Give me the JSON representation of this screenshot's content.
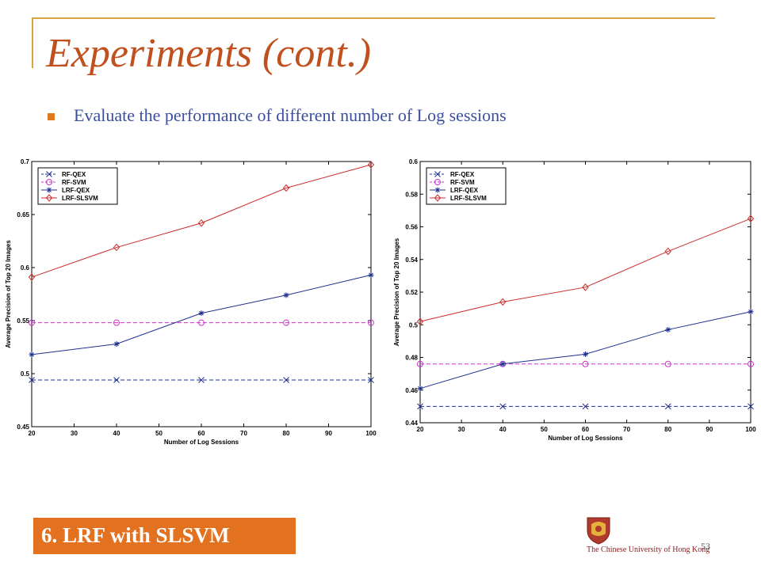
{
  "slide": {
    "title": "Experiments (cont.)",
    "bullet": "Evaluate the performance of different number of Log sessions",
    "footer_label": "6. LRF with SLSVM",
    "page_number": "53",
    "logo_text": "The Chinese University of Hong Kong"
  },
  "chart_data": [
    {
      "type": "line",
      "title": "",
      "xlabel": "Number of Log Sessions",
      "ylabel": "Average Precision of Top 20 Images",
      "x": [
        20,
        40,
        60,
        80,
        100
      ],
      "xlim": [
        20,
        100
      ],
      "ylim": [
        0.45,
        0.7
      ],
      "xticks": [
        "20",
        "30",
        "40",
        "50",
        "60",
        "70",
        "80",
        "90",
        "100"
      ],
      "yticks": [
        "0.45",
        "0.5",
        "0.55",
        "0.6",
        "0.65",
        "0.7"
      ],
      "legend_position": "top-left",
      "grid": false,
      "series": [
        {
          "name": "RF-QEX",
          "color": "#1f2f8f",
          "dash": "dashed",
          "marker": "x",
          "values": [
            0.494,
            0.494,
            0.494,
            0.494,
            0.494
          ]
        },
        {
          "name": "RF-SVM",
          "color": "#cc33cc",
          "dash": "dashed",
          "marker": "o",
          "values": [
            0.548,
            0.548,
            0.548,
            0.548,
            0.548
          ]
        },
        {
          "name": "LRF-QEX",
          "color": "#1f2f8f",
          "dash": "solid",
          "marker": "*",
          "values": [
            0.518,
            0.528,
            0.557,
            0.574,
            0.593
          ]
        },
        {
          "name": "LRF-SLSVM",
          "color": "#cc2a2a",
          "dash": "solid",
          "marker": "d",
          "values": [
            0.591,
            0.619,
            0.642,
            0.675,
            0.697
          ]
        }
      ]
    },
    {
      "type": "line",
      "title": "",
      "xlabel": "Number of Log Sessions",
      "ylabel": "Average Precision of Top 20 Images",
      "x": [
        20,
        40,
        60,
        80,
        100
      ],
      "xlim": [
        20,
        100
      ],
      "ylim": [
        0.44,
        0.6
      ],
      "xticks": [
        "20",
        "30",
        "40",
        "50",
        "60",
        "70",
        "80",
        "90",
        "100"
      ],
      "yticks": [
        "0.44",
        "0.46",
        "0.48",
        "0.5",
        "0.52",
        "0.54",
        "0.56",
        "0.58",
        "0.6"
      ],
      "legend_position": "top-left",
      "grid": false,
      "series": [
        {
          "name": "RF-QEX",
          "color": "#1f2f8f",
          "dash": "dashed",
          "marker": "x",
          "values": [
            0.45,
            0.45,
            0.45,
            0.45,
            0.45
          ]
        },
        {
          "name": "RF-SVM",
          "color": "#cc33cc",
          "dash": "dashed",
          "marker": "o",
          "values": [
            0.476,
            0.476,
            0.476,
            0.476,
            0.476
          ]
        },
        {
          "name": "LRF-QEX",
          "color": "#1f2f8f",
          "dash": "solid",
          "marker": "*",
          "values": [
            0.461,
            0.476,
            0.482,
            0.497,
            0.508
          ]
        },
        {
          "name": "LRF-SLSVM",
          "color": "#cc2a2a",
          "dash": "solid",
          "marker": "d",
          "values": [
            0.502,
            0.514,
            0.523,
            0.545,
            0.565
          ]
        }
      ]
    }
  ]
}
